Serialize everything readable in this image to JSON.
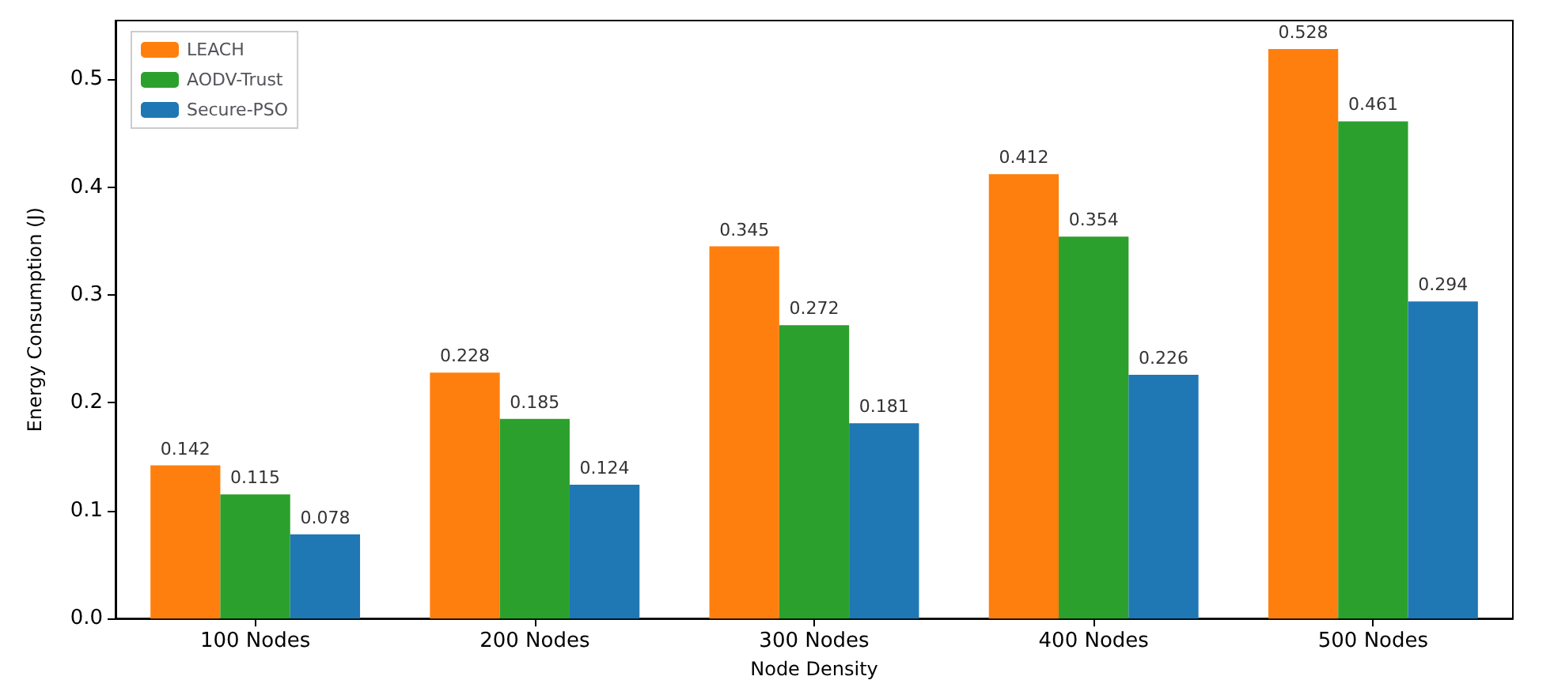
{
  "chart_data": {
    "type": "bar",
    "xlabel": "Node Density",
    "ylabel": "Energy Consumption (J)",
    "categories": [
      "100 Nodes",
      "200 Nodes",
      "300 Nodes",
      "400 Nodes",
      "500 Nodes"
    ],
    "series": [
      {
        "name": "LEACH",
        "color": "#ff7f0e",
        "values": [
          0.142,
          0.228,
          0.345,
          0.412,
          0.528
        ]
      },
      {
        "name": "AODV-Trust",
        "color": "#2ca02c",
        "values": [
          0.115,
          0.185,
          0.272,
          0.354,
          0.461
        ]
      },
      {
        "name": "Secure-PSO",
        "color": "#1f77b4",
        "values": [
          0.078,
          0.124,
          0.181,
          0.226,
          0.294
        ]
      }
    ],
    "ylim": [
      0,
      0.5544
    ],
    "yticks": [
      {
        "value": 0,
        "label": "0.0"
      },
      0.1,
      0.2,
      0.3,
      0.4,
      0.5
    ],
    "data_labels": true,
    "legend": "top left",
    "grid": false
  }
}
